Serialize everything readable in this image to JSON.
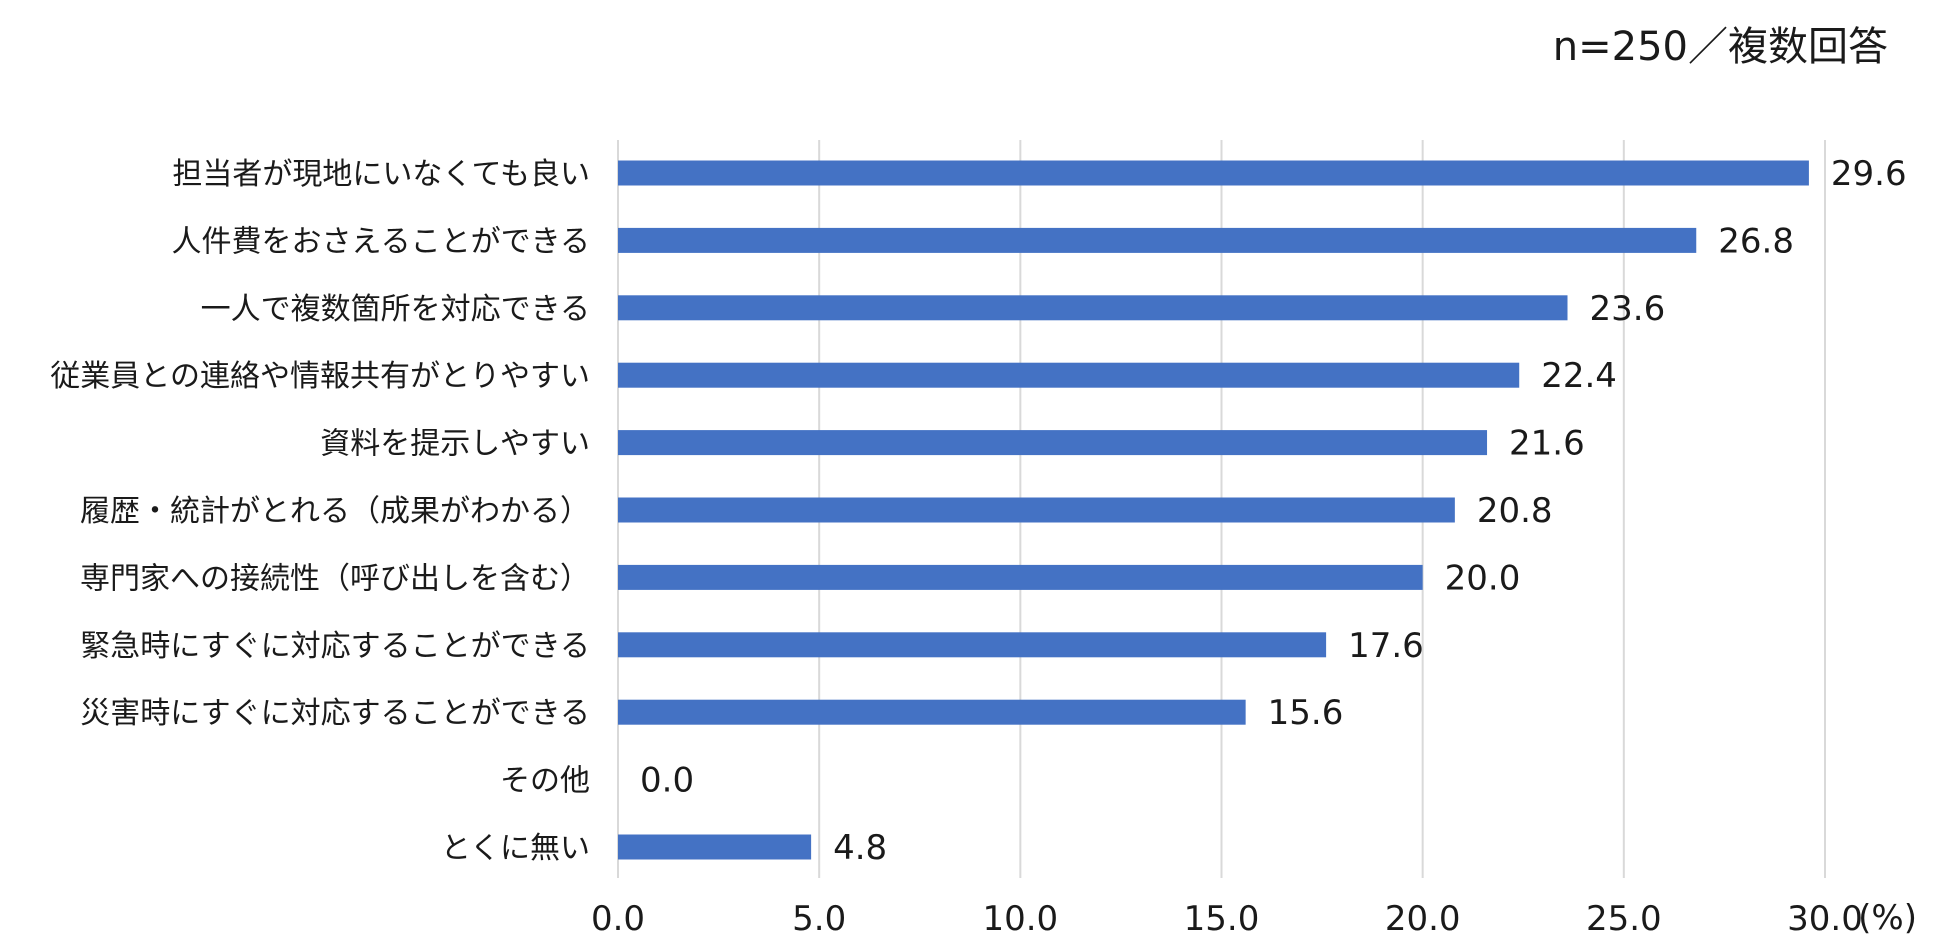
{
  "sample_note": "n=250／複数回答",
  "chart_data": {
    "type": "bar",
    "orientation": "horizontal",
    "categories": [
      "担当者が現地にいなくても良い",
      "人件費をおさえることができる",
      "一人で複数箇所を対応できる",
      "従業員との連絡や情報共有がとりやすい",
      "資料を提示しやすい",
      "履歴・統計がとれる（成果がわかる）",
      "専門家への接続性（呼び出しを含む）",
      "緊急時にすぐに対応することができる",
      "災害時にすぐに対応することができる",
      "その他",
      "とくに無い"
    ],
    "values": [
      29.6,
      26.8,
      23.6,
      22.4,
      21.6,
      20.8,
      20.0,
      17.6,
      15.6,
      0.0,
      4.8
    ],
    "value_labels": [
      "29.6",
      "26.8",
      "23.6",
      "22.4",
      "21.6",
      "20.8",
      "20.0",
      "17.6",
      "15.6",
      "0.0",
      "4.8"
    ],
    "x_ticks": [
      0,
      5,
      10,
      15,
      20,
      25,
      30
    ],
    "x_tick_labels": [
      "0.0",
      "5.0",
      "10.0",
      "15.0",
      "20.0",
      "25.0",
      "30.0"
    ],
    "x_unit": "(%)",
    "xlim": [
      0,
      30
    ],
    "grid": true,
    "bar_color": "#4472C4",
    "grid_color": "#D9D9D9"
  }
}
